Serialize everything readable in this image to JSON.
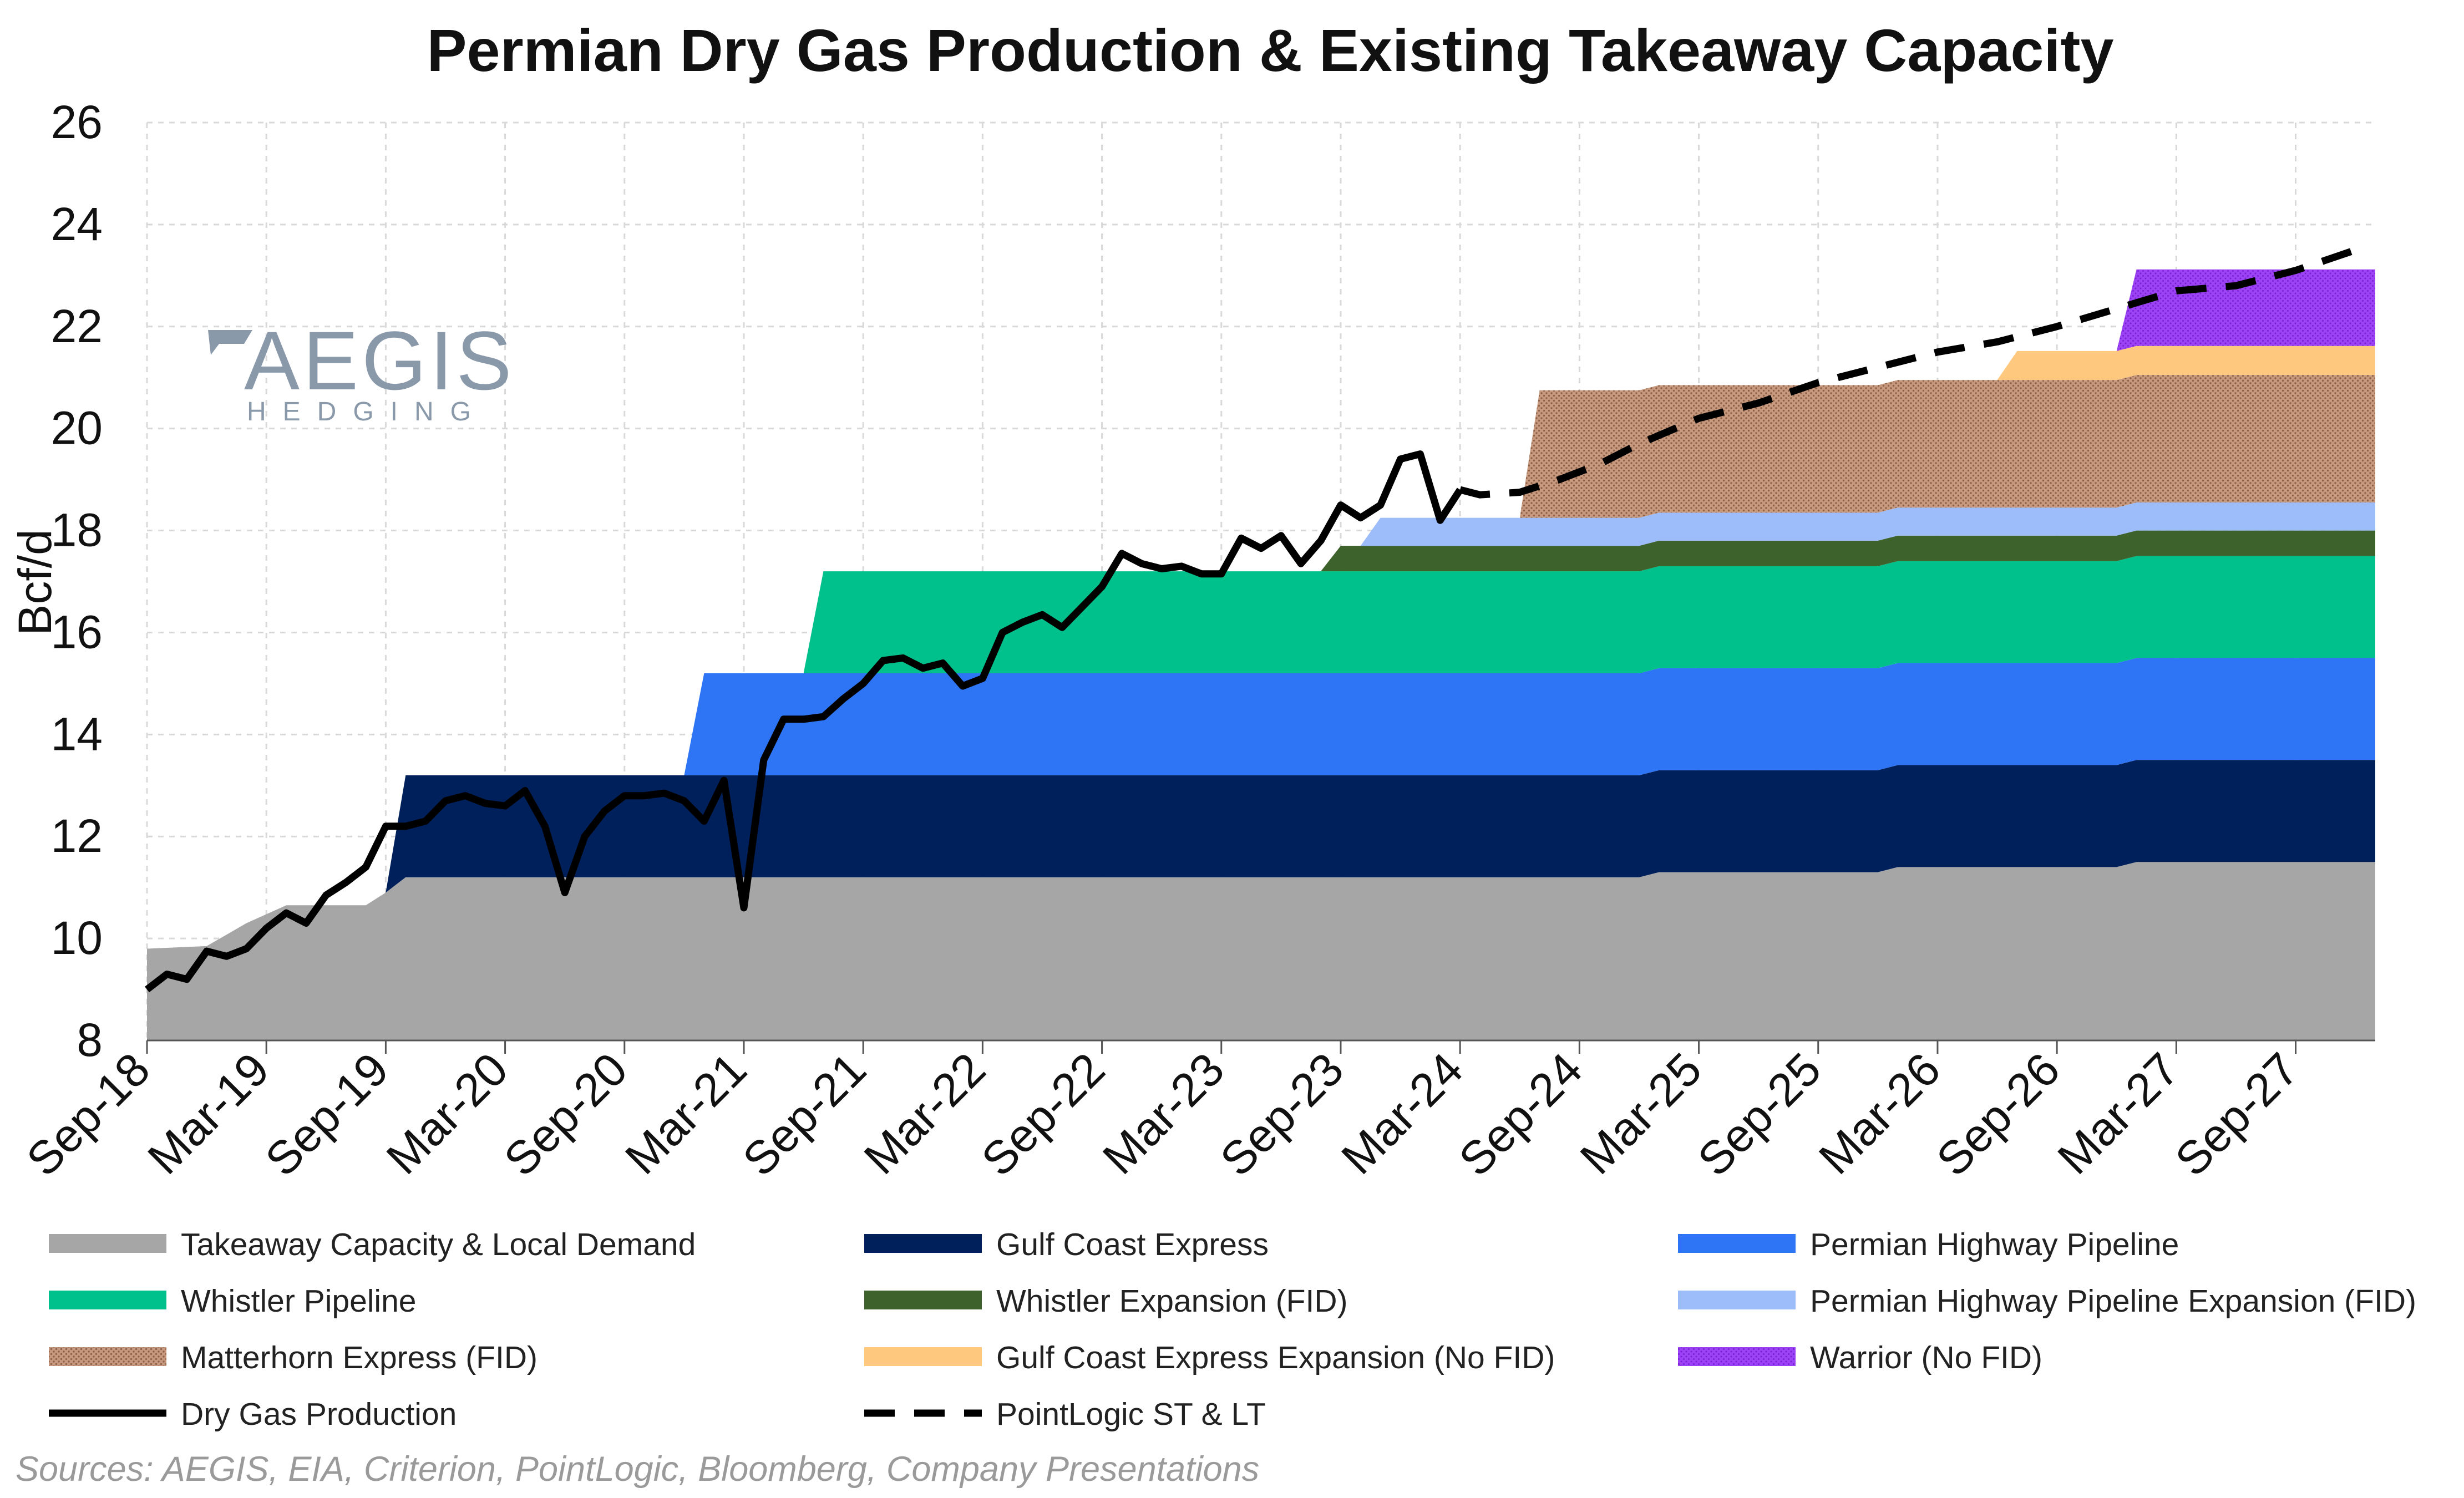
{
  "chart_data": {
    "type": "area",
    "title": "Permian Dry Gas Production & Existing Takeaway Capacity",
    "ylabel": "Bcf/d",
    "ylim": [
      8,
      26
    ],
    "yticks": [
      8,
      10,
      12,
      14,
      16,
      18,
      20,
      22,
      24,
      26
    ],
    "xlim": [
      "2018-09",
      "2028-01"
    ],
    "xticks": [
      "Sep-18",
      "Mar-19",
      "Sep-19",
      "Mar-20",
      "Sep-20",
      "Mar-21",
      "Sep-21",
      "Mar-22",
      "Sep-22",
      "Mar-23",
      "Sep-23",
      "Mar-24",
      "Sep-24",
      "Mar-25",
      "Sep-25",
      "Mar-26",
      "Sep-26",
      "Mar-27",
      "Sep-27"
    ],
    "grid": true,
    "stacked_series": [
      {
        "name": "Takeaway Capacity & Local Demand",
        "color": "#a6a6a6",
        "pattern": "solid",
        "points": [
          [
            "2018-09",
            9.8
          ],
          [
            "2018-12",
            9.85
          ],
          [
            "2019-02",
            10.3
          ],
          [
            "2019-04",
            10.65
          ],
          [
            "2019-08",
            10.65
          ],
          [
            "2019-09",
            10.9
          ],
          [
            "2019-10",
            11.2
          ],
          [
            "2024-12",
            11.2
          ],
          [
            "2025-01",
            11.3
          ],
          [
            "2025-12",
            11.3
          ],
          [
            "2026-01",
            11.4
          ],
          [
            "2026-12",
            11.4
          ],
          [
            "2027-01",
            11.5
          ],
          [
            "2028-01",
            11.5
          ]
        ]
      },
      {
        "name": "Gulf Coast Express",
        "color": "#00205b",
        "pattern": "solid",
        "points": [
          [
            "2019-09",
            0
          ],
          [
            "2019-10",
            2.0
          ],
          [
            "2028-01",
            2.0
          ]
        ]
      },
      {
        "name": "Permian Highway Pipeline",
        "color": "#2e75f6",
        "pattern": "solid",
        "points": [
          [
            "2020-12",
            0
          ],
          [
            "2021-01",
            2.0
          ],
          [
            "2028-01",
            2.0
          ]
        ]
      },
      {
        "name": "Whistler Pipeline",
        "color": "#00c08b",
        "pattern": "solid",
        "points": [
          [
            "2021-06",
            0
          ],
          [
            "2021-07",
            2.0
          ],
          [
            "2028-01",
            2.0
          ]
        ]
      },
      {
        "name": "Whistler Expansion (FID)",
        "color": "#3e622b",
        "pattern": "solid",
        "points": [
          [
            "2023-08",
            0
          ],
          [
            "2023-09",
            0.5
          ],
          [
            "2028-01",
            0.5
          ]
        ]
      },
      {
        "name": "Permian Highway Pipeline Expansion (FID)",
        "color": "#9dbcfa",
        "pattern": "solid",
        "points": [
          [
            "2023-10",
            0
          ],
          [
            "2023-11",
            0.55
          ],
          [
            "2028-01",
            0.55
          ]
        ]
      },
      {
        "name": "Matterhorn Express (FID)",
        "color": "#b98a70",
        "pattern": "dotted",
        "points": [
          [
            "2024-06",
            0
          ],
          [
            "2024-07",
            2.5
          ],
          [
            "2028-01",
            2.5
          ]
        ]
      },
      {
        "name": "Gulf Coast Express Expansion (No FID)",
        "color": "#ffc87f",
        "pattern": "solid",
        "points": [
          [
            "2026-06",
            0
          ],
          [
            "2026-07",
            0.57
          ],
          [
            "2028-01",
            0.57
          ]
        ]
      },
      {
        "name": "Warrior (No FID)",
        "color": "#9b3df2",
        "pattern": "dotted",
        "points": [
          [
            "2026-12",
            0
          ],
          [
            "2027-01",
            1.5
          ],
          [
            "2028-01",
            1.5
          ]
        ]
      }
    ],
    "line_series": [
      {
        "name": "Dry Gas Production",
        "color": "#000000",
        "style": "solid",
        "points": [
          [
            "2018-09",
            9.0
          ],
          [
            "2018-10",
            9.3
          ],
          [
            "2018-11",
            9.2
          ],
          [
            "2018-12",
            9.75
          ],
          [
            "2019-01",
            9.65
          ],
          [
            "2019-02",
            9.8
          ],
          [
            "2019-03",
            10.2
          ],
          [
            "2019-04",
            10.5
          ],
          [
            "2019-05",
            10.3
          ],
          [
            "2019-06",
            10.85
          ],
          [
            "2019-07",
            11.1
          ],
          [
            "2019-08",
            11.4
          ],
          [
            "2019-09",
            12.2
          ],
          [
            "2019-10",
            12.2
          ],
          [
            "2019-11",
            12.3
          ],
          [
            "2019-12",
            12.7
          ],
          [
            "2020-01",
            12.8
          ],
          [
            "2020-02",
            12.65
          ],
          [
            "2020-03",
            12.6
          ],
          [
            "2020-04",
            12.9
          ],
          [
            "2020-05",
            12.2
          ],
          [
            "2020-06",
            10.9
          ],
          [
            "2020-07",
            12.0
          ],
          [
            "2020-08",
            12.5
          ],
          [
            "2020-09",
            12.8
          ],
          [
            "2020-10",
            12.8
          ],
          [
            "2020-11",
            12.85
          ],
          [
            "2020-12",
            12.7
          ],
          [
            "2021-01",
            12.3
          ],
          [
            "2021-02",
            13.1
          ],
          [
            "2021-03",
            10.6
          ],
          [
            "2021-04",
            13.5
          ],
          [
            "2021-05",
            14.3
          ],
          [
            "2021-06",
            14.3
          ],
          [
            "2021-07",
            14.35
          ],
          [
            "2021-08",
            14.7
          ],
          [
            "2021-09",
            15.0
          ],
          [
            "2021-10",
            15.45
          ],
          [
            "2021-11",
            15.5
          ],
          [
            "2021-12",
            15.3
          ],
          [
            "2022-01",
            15.4
          ],
          [
            "2022-02",
            14.95
          ],
          [
            "2022-03",
            15.1
          ],
          [
            "2022-04",
            16.0
          ],
          [
            "2022-05",
            16.2
          ],
          [
            "2022-06",
            16.35
          ],
          [
            "2022-07",
            16.1
          ],
          [
            "2022-08",
            16.5
          ],
          [
            "2022-09",
            16.9
          ],
          [
            "2022-10",
            17.55
          ],
          [
            "2022-11",
            17.35
          ],
          [
            "2022-12",
            17.25
          ],
          [
            "2023-01",
            17.3
          ],
          [
            "2023-02",
            17.15
          ],
          [
            "2023-03",
            17.15
          ],
          [
            "2023-04",
            17.85
          ],
          [
            "2023-05",
            17.65
          ],
          [
            "2023-06",
            17.9
          ],
          [
            "2023-07",
            17.35
          ],
          [
            "2023-08",
            17.8
          ],
          [
            "2023-09",
            18.5
          ],
          [
            "2023-10",
            18.25
          ],
          [
            "2023-11",
            18.5
          ],
          [
            "2023-12",
            19.4
          ],
          [
            "2024-01",
            19.5
          ],
          [
            "2024-02",
            18.2
          ],
          [
            "2024-03",
            18.8
          ]
        ]
      },
      {
        "name": "PointLogic ST & LT",
        "color": "#000000",
        "style": "dashed",
        "points": [
          [
            "2024-03",
            18.8
          ],
          [
            "2024-04",
            18.7
          ],
          [
            "2024-06",
            18.75
          ],
          [
            "2024-08",
            19.0
          ],
          [
            "2024-10",
            19.3
          ],
          [
            "2024-12",
            19.7
          ],
          [
            "2025-03",
            20.2
          ],
          [
            "2025-06",
            20.5
          ],
          [
            "2025-09",
            20.9
          ],
          [
            "2025-12",
            21.2
          ],
          [
            "2026-03",
            21.5
          ],
          [
            "2026-06",
            21.7
          ],
          [
            "2026-09",
            22.0
          ],
          [
            "2026-12",
            22.35
          ],
          [
            "2027-03",
            22.7
          ],
          [
            "2027-06",
            22.8
          ],
          [
            "2027-09",
            23.1
          ],
          [
            "2027-12",
            23.5
          ]
        ]
      }
    ],
    "legend": [
      "Takeaway Capacity & Local Demand",
      "Gulf Coast Express",
      "Permian Highway Pipeline",
      "Whistler Pipeline",
      "Whistler Expansion (FID)",
      "Permian Highway Pipeline Expansion (FID)",
      "Matterhorn Express (FID)",
      "Gulf Coast Express Expansion (No FID)",
      "Warrior (No FID)",
      "Dry Gas Production",
      "PointLogic ST & LT"
    ],
    "legend_placement": "bottom",
    "source": "Sources: AEGIS, EIA, Criterion, PointLogic, Bloomberg, Company Presentations"
  },
  "logo": {
    "main": "AEGIS",
    "sub": "HEDGING"
  }
}
